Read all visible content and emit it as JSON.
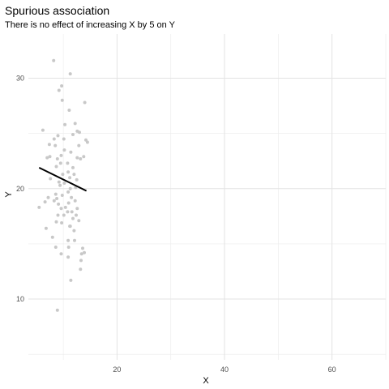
{
  "chart_data": {
    "type": "scatter",
    "title": "Spurious association",
    "subtitle": "There is no effect of increasing X by 5 on Y",
    "xlabel": "X",
    "ylabel": "Y",
    "xlim": [
      3.5,
      70
    ],
    "ylim": [
      4.5,
      34
    ],
    "x_ticks": [
      20,
      40,
      60
    ],
    "y_ticks": [
      10,
      20,
      30
    ],
    "grid": true,
    "legend": "none",
    "point_color": "#c8c8c8",
    "line_color": "#000000",
    "points": [
      [
        8.2,
        31.6
      ],
      [
        11.3,
        30.4
      ],
      [
        9.7,
        29.3
      ],
      [
        9.2,
        28.9
      ],
      [
        14.0,
        27.8
      ],
      [
        9.8,
        28.0
      ],
      [
        11.1,
        27.1
      ],
      [
        6.2,
        25.3
      ],
      [
        10.3,
        25.8
      ],
      [
        12.2,
        25.9
      ],
      [
        12.6,
        25.2
      ],
      [
        13.0,
        25.1
      ],
      [
        11.8,
        24.9
      ],
      [
        9.0,
        24.8
      ],
      [
        8.3,
        24.5
      ],
      [
        14.2,
        24.4
      ],
      [
        14.5,
        24.2
      ],
      [
        10.1,
        24.5
      ],
      [
        8.5,
        23.9
      ],
      [
        12.9,
        23.9
      ],
      [
        7.4,
        24.0
      ],
      [
        10.2,
        23.5
      ],
      [
        9.6,
        23.0
      ],
      [
        11.4,
        23.3
      ],
      [
        7.5,
        22.9
      ],
      [
        7.0,
        22.8
      ],
      [
        8.9,
        22.7
      ],
      [
        12.6,
        22.8
      ],
      [
        13.2,
        22.7
      ],
      [
        13.8,
        22.9
      ],
      [
        9.5,
        22.3
      ],
      [
        10.8,
        22.3
      ],
      [
        8.7,
        22.0
      ],
      [
        11.8,
        21.9
      ],
      [
        10.9,
        21.5
      ],
      [
        9.9,
        21.3
      ],
      [
        12.0,
        21.3
      ],
      [
        11.2,
        21.0
      ],
      [
        12.5,
        20.8
      ],
      [
        7.6,
        20.9
      ],
      [
        9.2,
        20.6
      ],
      [
        10.2,
        20.5
      ],
      [
        9.4,
        20.3
      ],
      [
        11.3,
        20.0
      ],
      [
        12.3,
        20.1
      ],
      [
        10.9,
        19.7
      ],
      [
        8.6,
        19.5
      ],
      [
        9.8,
        19.4
      ],
      [
        7.2,
        19.2
      ],
      [
        8.8,
        19.1
      ],
      [
        11.5,
        19.2
      ],
      [
        8.3,
        18.9
      ],
      [
        12.2,
        18.9
      ],
      [
        9.1,
        18.6
      ],
      [
        6.6,
        18.8
      ],
      [
        11.0,
        18.7
      ],
      [
        10.4,
        18.3
      ],
      [
        9.6,
        18.2
      ],
      [
        12.6,
        18.2
      ],
      [
        5.5,
        18.3
      ],
      [
        10.8,
        17.9
      ],
      [
        11.6,
        17.9
      ],
      [
        9.0,
        17.6
      ],
      [
        12.4,
        17.6
      ],
      [
        10.1,
        17.6
      ],
      [
        8.7,
        17.0
      ],
      [
        11.8,
        17.3
      ],
      [
        12.9,
        17.1
      ],
      [
        9.7,
        16.9
      ],
      [
        11.3,
        16.6
      ],
      [
        11.2,
        16.6
      ],
      [
        6.8,
        16.4
      ],
      [
        12.0,
        16.2
      ],
      [
        8.0,
        15.6
      ],
      [
        12.1,
        15.3
      ],
      [
        10.9,
        15.3
      ],
      [
        8.6,
        14.7
      ],
      [
        13.6,
        14.6
      ],
      [
        11.0,
        14.7
      ],
      [
        13.4,
        14.1
      ],
      [
        13.9,
        14.2
      ],
      [
        9.6,
        14.1
      ],
      [
        10.9,
        13.8
      ],
      [
        13.3,
        13.5
      ],
      [
        13.2,
        12.7
      ],
      [
        11.4,
        11.7
      ],
      [
        8.9,
        9.0
      ]
    ],
    "fit_line": {
      "x": [
        5.5,
        14.3
      ],
      "y": [
        21.9,
        19.8
      ]
    }
  }
}
